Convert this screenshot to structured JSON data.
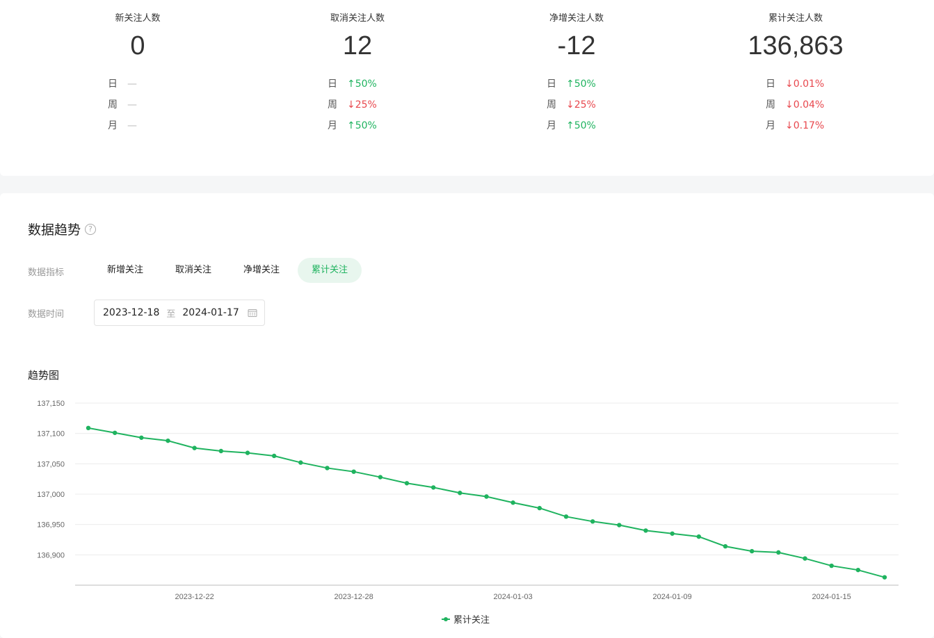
{
  "stats": [
    {
      "label": "新关注人数",
      "value": "0",
      "rows": [
        {
          "label": "日",
          "dir": "none",
          "value": "—"
        },
        {
          "label": "周",
          "dir": "none",
          "value": "—"
        },
        {
          "label": "月",
          "dir": "none",
          "value": "—"
        }
      ]
    },
    {
      "label": "取消关注人数",
      "value": "12",
      "rows": [
        {
          "label": "日",
          "dir": "up",
          "value": "↑50%"
        },
        {
          "label": "周",
          "dir": "down",
          "value": "↓25%"
        },
        {
          "label": "月",
          "dir": "up",
          "value": "↑50%"
        }
      ]
    },
    {
      "label": "净增关注人数",
      "value": "-12",
      "rows": [
        {
          "label": "日",
          "dir": "up",
          "value": "↑50%"
        },
        {
          "label": "周",
          "dir": "down",
          "value": "↓25%"
        },
        {
          "label": "月",
          "dir": "up",
          "value": "↑50%"
        }
      ]
    },
    {
      "label": "累计关注人数",
      "value": "136,863",
      "rows": [
        {
          "label": "日",
          "dir": "down",
          "value": "↓0.01%"
        },
        {
          "label": "周",
          "dir": "down",
          "value": "↓0.04%"
        },
        {
          "label": "月",
          "dir": "down",
          "value": "↓0.17%"
        }
      ]
    }
  ],
  "section": {
    "title": "数据趋势",
    "help_icon": "question-circle-icon",
    "metric_label": "数据指标",
    "time_label": "数据时间",
    "tabs": [
      {
        "label": "新增关注",
        "active": false
      },
      {
        "label": "取消关注",
        "active": false
      },
      {
        "label": "净增关注",
        "active": false
      },
      {
        "label": "累计关注",
        "active": true
      }
    ],
    "date_start": "2023-12-18",
    "date_sep": "至",
    "date_end": "2024-01-17",
    "calendar_icon": "calendar-icon",
    "chart_title": "趋势图"
  },
  "colors": {
    "accent": "#1fb35f",
    "up": "#1fb35f",
    "down": "#e8474d"
  },
  "chart_data": {
    "type": "line",
    "y_ticks": [
      136900,
      136950,
      137000,
      137050,
      137100,
      137150
    ],
    "y_tick_labels": [
      "136,900",
      "136,950",
      "137,000",
      "137,050",
      "137,100",
      "137,150"
    ],
    "ylim": [
      136850,
      137150
    ],
    "x_tick_labels": [
      "2023-12-22",
      "2023-12-28",
      "2024-01-03",
      "2024-01-09",
      "2024-01-15"
    ],
    "x": [
      "2023-12-18",
      "2023-12-19",
      "2023-12-20",
      "2023-12-21",
      "2023-12-22",
      "2023-12-23",
      "2023-12-24",
      "2023-12-25",
      "2023-12-26",
      "2023-12-27",
      "2023-12-28",
      "2023-12-29",
      "2023-12-30",
      "2023-12-31",
      "2024-01-01",
      "2024-01-02",
      "2024-01-03",
      "2024-01-04",
      "2024-01-05",
      "2024-01-06",
      "2024-01-07",
      "2024-01-08",
      "2024-01-09",
      "2024-01-10",
      "2024-01-11",
      "2024-01-12",
      "2024-01-13",
      "2024-01-14",
      "2024-01-15",
      "2024-01-16",
      "2024-01-17"
    ],
    "series": [
      {
        "name": "累计关注",
        "color": "#1fb35f",
        "values": [
          137109,
          137101,
          137093,
          137088,
          137076,
          137071,
          137068,
          137063,
          137052,
          137043,
          137037,
          137028,
          137018,
          137011,
          137002,
          136996,
          136986,
          136977,
          136963,
          136955,
          136949,
          136940,
          136935,
          136930,
          136914,
          136906,
          136904,
          136894,
          136882,
          136875,
          136863
        ]
      }
    ],
    "legend_position": "bottom-center",
    "grid": true
  }
}
